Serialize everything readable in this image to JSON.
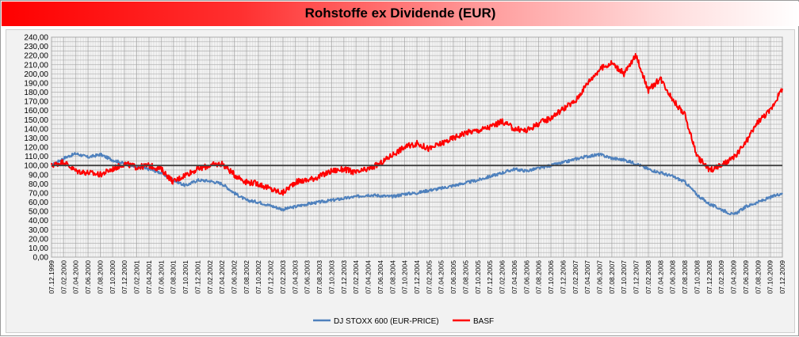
{
  "title": "Rohstoffe ex Dividende (EUR)",
  "chart_data": {
    "type": "line",
    "title": "Rohstoffe ex Dividende (EUR)",
    "ylim": [
      0,
      240
    ],
    "ytick_step": 10,
    "y_tick_labels": [
      "0,00",
      "10,00",
      "20,00",
      "30,00",
      "40,00",
      "50,00",
      "60,00",
      "70,00",
      "80,00",
      "90,00",
      "100,00",
      "110,00",
      "120,00",
      "130,00",
      "140,00",
      "150,00",
      "160,00",
      "170,00",
      "180,00",
      "190,00",
      "200,00",
      "210,00",
      "220,00",
      "230,00",
      "240,00"
    ],
    "x_tick_labels": [
      "07.12.1999",
      "07.02.2000",
      "07.04.2000",
      "07.06.2000",
      "07.08.2000",
      "07.10.2000",
      "07.12.2000",
      "07.02.2001",
      "07.04.2001",
      "07.06.2001",
      "07.08.2001",
      "07.10.2001",
      "07.12.2001",
      "07.02.2002",
      "07.04.2002",
      "07.06.2002",
      "07.08.2002",
      "07.10.2002",
      "07.12.2002",
      "07.02.2003",
      "07.04.2003",
      "07.06.2003",
      "07.08.2003",
      "07.10.2003",
      "07.12.2003",
      "07.02.2004",
      "07.04.2004",
      "07.06.2004",
      "07.08.2004",
      "07.10.2004",
      "07.12.2004",
      "07.02.2005",
      "07.04.2005",
      "07.06.2005",
      "07.08.2005",
      "07.10.2005",
      "07.12.2005",
      "07.02.2006",
      "07.04.2006",
      "07.06.2006",
      "07.08.2006",
      "07.10.2006",
      "07.12.2006",
      "07.02.2007",
      "07.04.2007",
      "07.06.2007",
      "07.08.2007",
      "07.10.2007",
      "07.12.2007",
      "07.02.2008",
      "07.04.2008",
      "07.06.2008",
      "07.08.2008",
      "07.10.2008",
      "07.12.2008",
      "07.02.2009",
      "07.04.2009",
      "07.06.2009",
      "07.08.2009",
      "07.10.2009",
      "07.12.2009"
    ],
    "reference_line": 100,
    "grid": true,
    "legend_position": "bottom",
    "series": [
      {
        "name": "DJ STOXX 600 (EUR-PRICE)",
        "color": "#4f81bd",
        "x": [
          "07.12.1999",
          "07.02.2000",
          "07.04.2000",
          "07.06.2000",
          "07.08.2000",
          "07.10.2000",
          "07.12.2000",
          "07.02.2001",
          "07.04.2001",
          "07.06.2001",
          "07.08.2001",
          "07.10.2001",
          "07.12.2001",
          "07.02.2002",
          "07.04.2002",
          "07.06.2002",
          "07.08.2002",
          "07.10.2002",
          "07.12.2002",
          "07.02.2003",
          "07.04.2003",
          "07.06.2003",
          "07.08.2003",
          "07.10.2003",
          "07.12.2003",
          "07.02.2004",
          "07.04.2004",
          "07.06.2004",
          "07.08.2004",
          "07.10.2004",
          "07.12.2004",
          "07.02.2005",
          "07.04.2005",
          "07.06.2005",
          "07.08.2005",
          "07.10.2005",
          "07.12.2005",
          "07.02.2006",
          "07.04.2006",
          "07.06.2006",
          "07.08.2006",
          "07.10.2006",
          "07.12.2006",
          "07.02.2007",
          "07.04.2007",
          "07.06.2007",
          "07.08.2007",
          "07.10.2007",
          "07.12.2007",
          "07.02.2008",
          "07.04.2008",
          "07.06.2008",
          "07.08.2008",
          "07.10.2008",
          "07.12.2008",
          "07.02.2009",
          "07.04.2009",
          "07.06.2009",
          "07.08.2009",
          "07.10.2009",
          "07.12.2009"
        ],
        "values": [
          100,
          108,
          113,
          109,
          112,
          106,
          102,
          98,
          96,
          92,
          84,
          78,
          84,
          83,
          80,
          70,
          62,
          60,
          56,
          52,
          55,
          58,
          60,
          62,
          64,
          66,
          68,
          67,
          66,
          69,
          70,
          73,
          75,
          78,
          81,
          84,
          88,
          92,
          96,
          94,
          97,
          100,
          103,
          107,
          110,
          112,
          108,
          106,
          102,
          96,
          92,
          88,
          82,
          68,
          58,
          52,
          46,
          55,
          60,
          65,
          70
        ]
      },
      {
        "name": "BASF",
        "color": "#ff0000",
        "x": [
          "07.12.1999",
          "07.02.2000",
          "07.04.2000",
          "07.06.2000",
          "07.08.2000",
          "07.10.2000",
          "07.12.2000",
          "07.02.2001",
          "07.04.2001",
          "07.06.2001",
          "07.08.2001",
          "07.10.2001",
          "07.12.2001",
          "07.02.2002",
          "07.04.2002",
          "07.06.2002",
          "07.08.2002",
          "07.10.2002",
          "07.12.2002",
          "07.02.2003",
          "07.04.2003",
          "07.06.2003",
          "07.08.2003",
          "07.10.2003",
          "07.12.2003",
          "07.02.2004",
          "07.04.2004",
          "07.06.2004",
          "07.08.2004",
          "07.10.2004",
          "07.12.2004",
          "07.02.2005",
          "07.04.2005",
          "07.06.2005",
          "07.08.2005",
          "07.10.2005",
          "07.12.2005",
          "07.02.2006",
          "07.04.2006",
          "07.06.2006",
          "07.08.2006",
          "07.10.2006",
          "07.12.2006",
          "07.02.2007",
          "07.04.2007",
          "07.06.2007",
          "07.08.2007",
          "07.10.2007",
          "07.12.2007",
          "07.02.2008",
          "07.04.2008",
          "07.06.2008",
          "07.08.2008",
          "07.10.2008",
          "07.12.2008",
          "07.02.2009",
          "07.04.2009",
          "07.06.2009",
          "07.08.2009",
          "07.10.2009",
          "07.12.2009"
        ],
        "values": [
          100,
          104,
          94,
          92,
          90,
          96,
          102,
          98,
          100,
          96,
          82,
          90,
          96,
          100,
          102,
          90,
          82,
          80,
          74,
          70,
          82,
          84,
          88,
          94,
          96,
          92,
          96,
          102,
          112,
          120,
          124,
          118,
          124,
          130,
          136,
          138,
          142,
          148,
          140,
          138,
          146,
          152,
          162,
          170,
          190,
          205,
          212,
          200,
          220,
          182,
          195,
          172,
          155,
          110,
          95,
          100,
          108,
          125,
          148,
          160,
          184
        ]
      }
    ]
  }
}
